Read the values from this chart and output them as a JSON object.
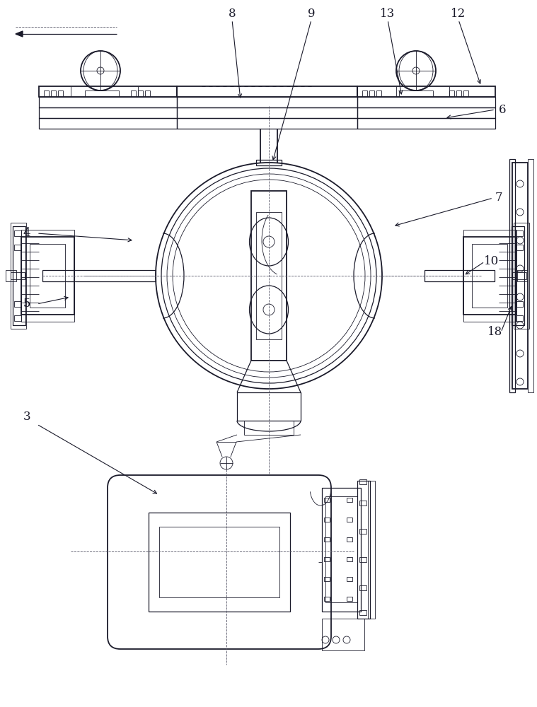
{
  "bg_color": "#ffffff",
  "line_color": "#1a1a2a",
  "dash_color": "#555566"
}
